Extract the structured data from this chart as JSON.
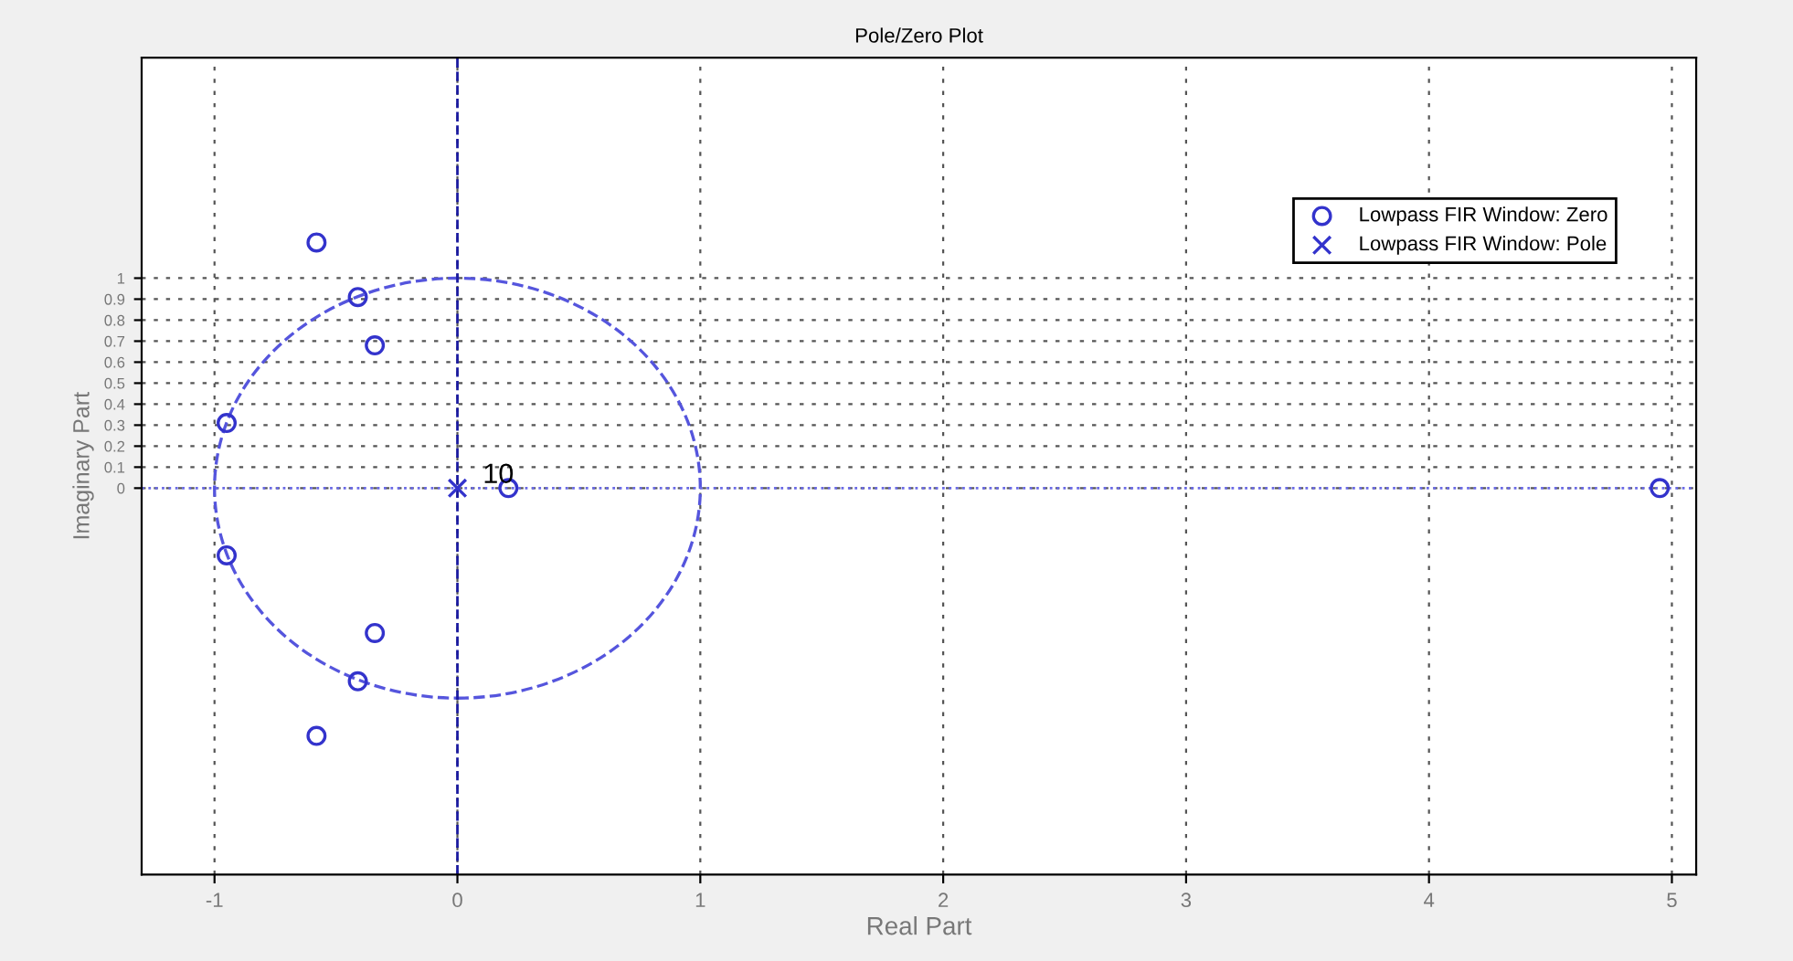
{
  "chart_data": {
    "type": "scatter",
    "title": "Pole/Zero Plot",
    "xlabel": "Real Part",
    "ylabel": "Imaginary Part",
    "series": [
      {
        "name": "Lowpass FIR Window: Zero",
        "marker": "circle",
        "color": "#3333cc",
        "x": [
          -0.58,
          -0.41,
          -0.34,
          -0.95,
          0.21,
          -0.95,
          -0.34,
          -0.41,
          -0.58,
          4.95
        ],
        "values": [
          1.17,
          0.91,
          0.68,
          0.31,
          0,
          -0.32,
          -0.69,
          -0.92,
          -1.18,
          0
        ]
      },
      {
        "name": "Lowpass FIR Window: Pole",
        "marker": "cross",
        "color": "#3333cc",
        "x": [
          0
        ],
        "values": [
          0
        ]
      }
    ],
    "ref_lines": [
      {
        "axis": "x",
        "value": 0,
        "color": "#1a1aa0",
        "line_style": "dashed"
      },
      {
        "axis": "y",
        "value": 0,
        "color": "#6a6ae6",
        "line_style": "dotted"
      }
    ],
    "annotations": [
      {
        "text": "10",
        "x": 0,
        "y": 0
      }
    ],
    "xlim": [
      -1.3,
      5.1
    ],
    "xticks": [
      -1,
      0,
      1,
      2,
      3,
      4,
      5
    ],
    "ylim": [
      -1.84,
      2.05
    ],
    "yticks": [
      0,
      0.1,
      0.2,
      0.3,
      0.4,
      0.5,
      0.6,
      0.7,
      0.8,
      0.9,
      1
    ],
    "grid": true,
    "legend": "top right"
  }
}
